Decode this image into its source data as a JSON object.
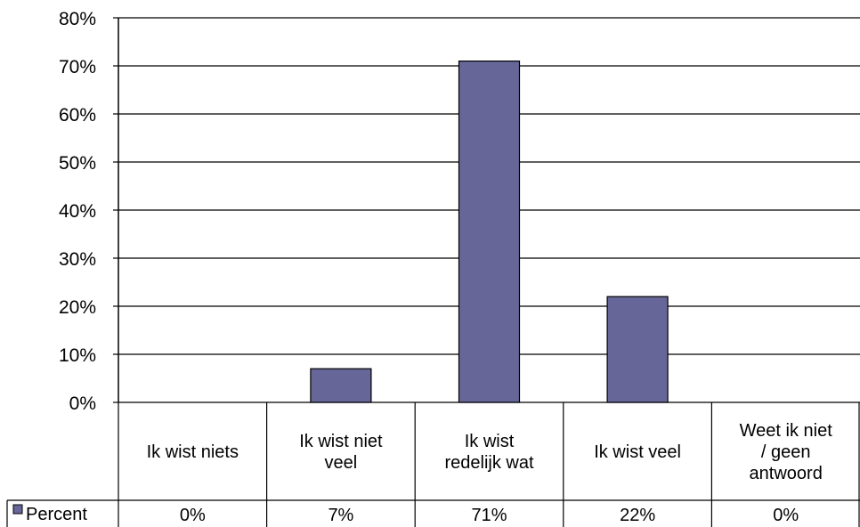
{
  "chart_data": {
    "type": "bar",
    "categories": [
      [
        "Ik wist niets"
      ],
      [
        "Ik wist niet",
        "veel"
      ],
      [
        "Ik wist",
        "redelijk wat"
      ],
      [
        "Ik wist veel"
      ],
      [
        "Weet ik niet",
        "/ geen",
        "antwoord"
      ]
    ],
    "series": [
      {
        "name": "Percent",
        "values": [
          0,
          7,
          71,
          22,
          0
        ],
        "labels": [
          "0%",
          "7%",
          "71%",
          "22%",
          "0%"
        ],
        "color": "#666699"
      }
    ],
    "ylim": [
      0,
      80
    ],
    "yticks": [
      0,
      10,
      20,
      30,
      40,
      50,
      60,
      70,
      80
    ],
    "ytick_labels": [
      "0%",
      "10%",
      "20%",
      "30%",
      "40%",
      "50%",
      "60%",
      "70%",
      "80%"
    ],
    "grid": true,
    "data_table": true,
    "legend": "data-table-left"
  }
}
